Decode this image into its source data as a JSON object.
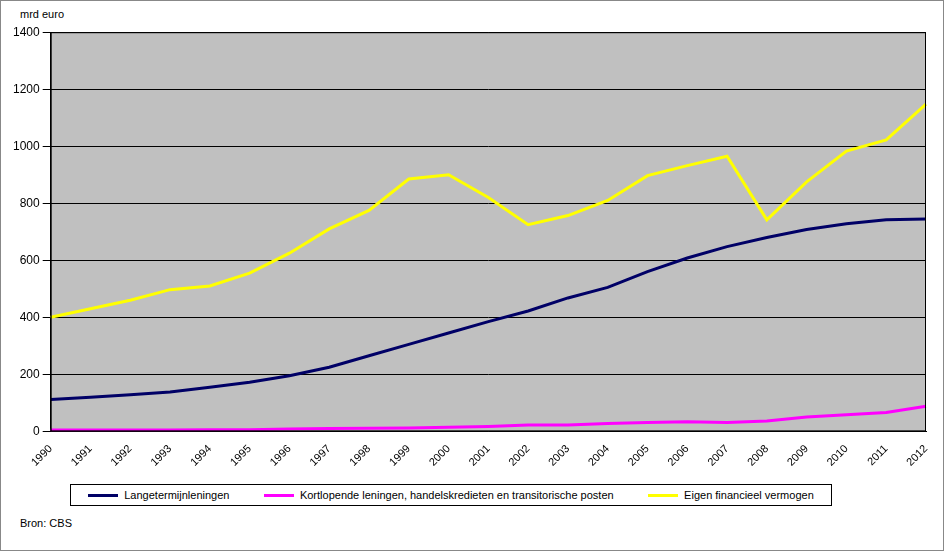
{
  "chart_data": {
    "type": "line",
    "ylabel": "mrd euro",
    "source": "Bron: CBS",
    "categories": [
      "1990",
      "1991",
      "1992",
      "1993",
      "1994",
      "1995",
      "1996",
      "1997",
      "1998",
      "1999",
      "2000",
      "2001",
      "2002",
      "2003",
      "2004",
      "2005",
      "2006",
      "2007",
      "2008",
      "2009",
      "2010",
      "2011",
      "2012"
    ],
    "series": [
      {
        "name": "Langetermijnleningen",
        "color": "#000066",
        "values": [
          112,
          120,
          128,
          138,
          155,
          172,
          195,
          225,
          265,
          305,
          345,
          385,
          422,
          468,
          505,
          560,
          608,
          648,
          680,
          708,
          728,
          742,
          745
        ]
      },
      {
        "name": "Kortlopende leningen, handelskredieten en transitorische posten",
        "color": "#ff00ff",
        "values": [
          5,
          5,
          5,
          5,
          6,
          6,
          8,
          10,
          11,
          12,
          14,
          17,
          22,
          22,
          28,
          31,
          34,
          31,
          36,
          50,
          58,
          66,
          88
        ]
      },
      {
        "name": "Eigen financieel vermogen",
        "color": "#ffff00",
        "values": [
          400,
          430,
          460,
          497,
          510,
          555,
          625,
          710,
          775,
          885,
          900,
          820,
          725,
          757,
          810,
          897,
          932,
          965,
          742,
          875,
          983,
          1022,
          1148
        ]
      }
    ],
    "ylim": [
      0,
      1400
    ],
    "yticks": [
      0,
      200,
      400,
      600,
      800,
      1000,
      1200,
      1400
    ],
    "grid": true,
    "legend": "bottom"
  }
}
